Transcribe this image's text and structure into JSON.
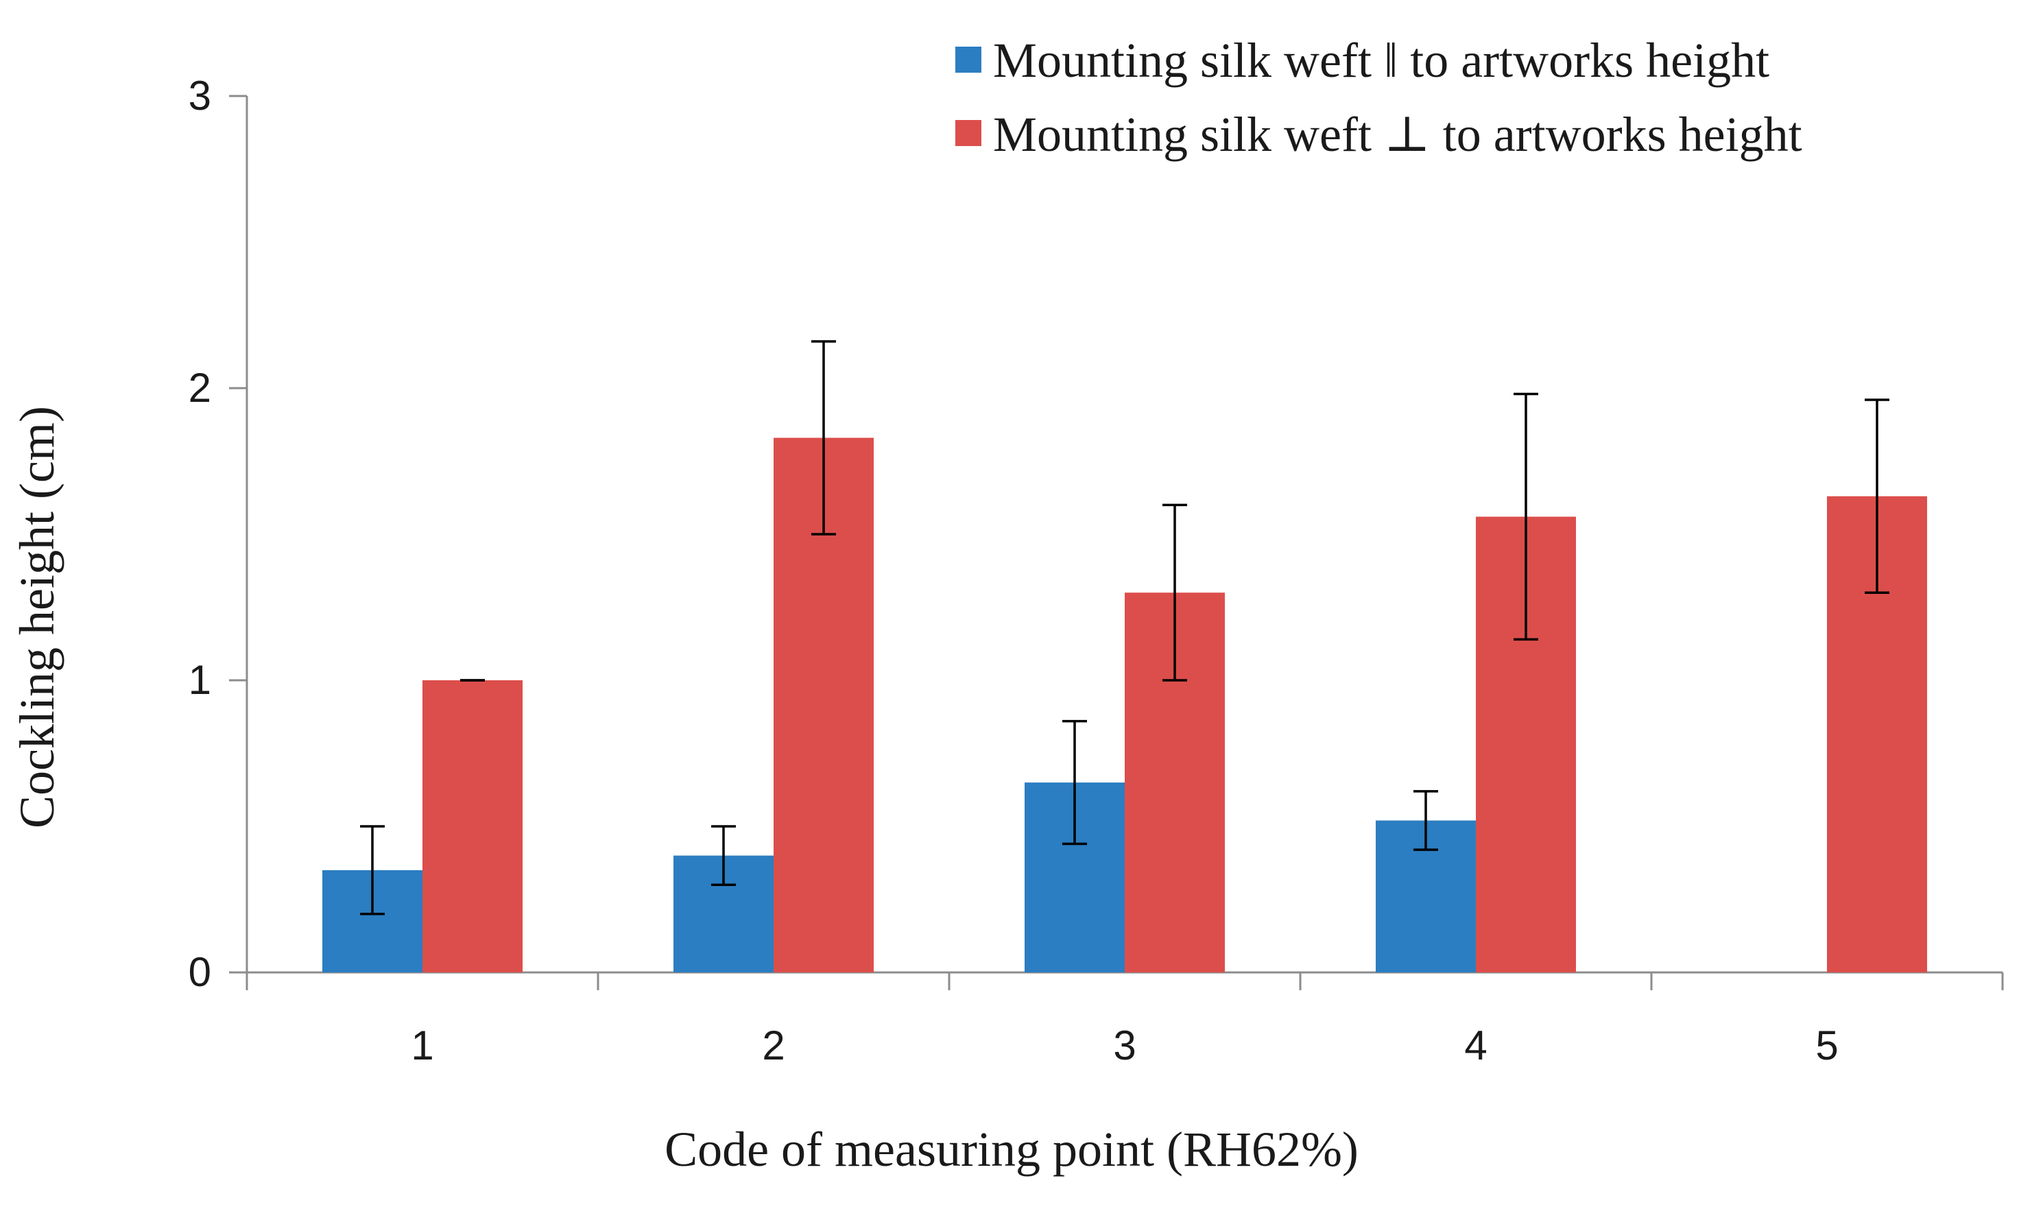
{
  "chart_data": {
    "type": "bar",
    "title": "",
    "xlabel": "Code of measuring point (RH62%)",
    "ylabel": "Cockling height (cm)",
    "ylim": [
      0,
      3
    ],
    "yticks": [
      0,
      1,
      2,
      3
    ],
    "categories": [
      "1",
      "2",
      "3",
      "4",
      "5"
    ],
    "legend_position": "top-right",
    "series": [
      {
        "name": "Mounting silk weft ‖ to artworks height",
        "color": "#2b7ec1",
        "values": [
          0.35,
          0.4,
          0.65,
          0.52,
          0
        ],
        "errors": [
          0.15,
          0.1,
          0.21,
          0.1,
          0
        ],
        "shown": [
          true,
          true,
          true,
          true,
          false
        ]
      },
      {
        "name": "Mounting silk weft ⊥ to artworks height",
        "color": "#dc4e4b",
        "values": [
          1.0,
          1.83,
          1.3,
          1.56,
          1.63
        ],
        "errors": [
          0.0,
          0.33,
          0.3,
          0.42,
          0.33
        ],
        "shown": [
          true,
          true,
          true,
          true,
          true
        ]
      }
    ]
  }
}
